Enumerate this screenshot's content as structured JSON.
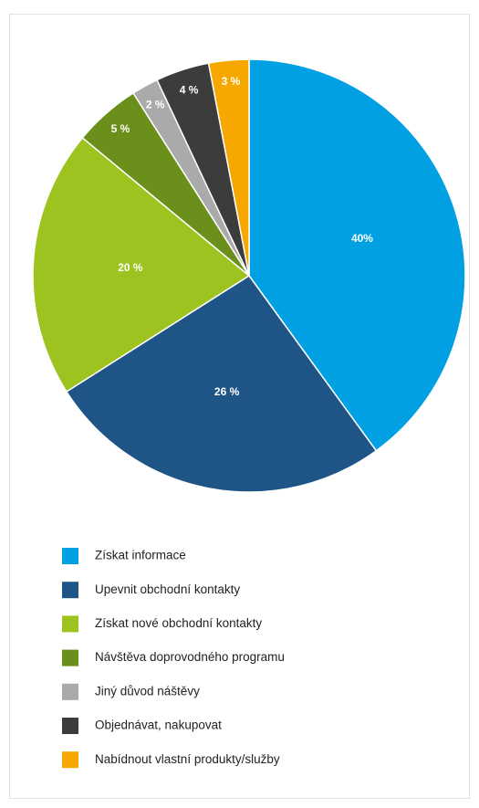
{
  "chart_data": {
    "type": "pie",
    "categories": [
      "Získat informace",
      "Upevnit obchodní kontakty",
      "Získat nové obchodní kontakty",
      "Návštěva doprovodného programu",
      "Jiný důvod náštěvy",
      "Objednávat, nakupovat",
      "Nabídnout vlastní produkty/služby"
    ],
    "values": [
      40,
      26,
      20,
      5,
      2,
      4,
      3
    ],
    "value_labels": [
      "40%",
      "26 %",
      "20 %",
      "5 %",
      "2 %",
      "4 %",
      "3 %"
    ],
    "colors": [
      "#00a0e3",
      "#1f5486",
      "#9cc31f",
      "#6a8f1b",
      "#aaaaaa",
      "#3c3c3c",
      "#f7a800"
    ]
  }
}
